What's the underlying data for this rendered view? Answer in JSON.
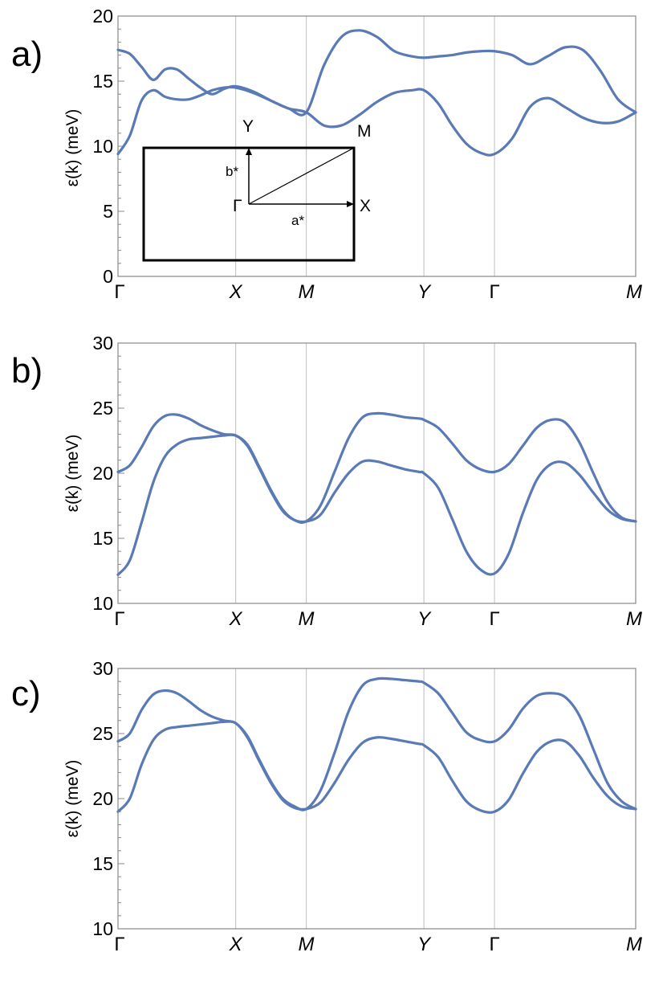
{
  "chart_data": [
    {
      "type": "line",
      "panel_tag": "a)",
      "ylabel": "ε(k) (meV)",
      "ylim": [
        0,
        20
      ],
      "yticks": [
        "0",
        "5",
        "10",
        "15",
        "20"
      ],
      "x_labels": [
        "Γ",
        "X",
        "M",
        "Y",
        "Γ",
        "M"
      ],
      "x_label_positions": [
        0,
        1,
        1.6,
        2.6,
        3.2,
        4.4
      ],
      "grid": "vertical at high-symmetry points",
      "series": [
        {
          "x": [
            0,
            0.1,
            0.2,
            0.3,
            0.4,
            0.5,
            0.6,
            0.7,
            0.8,
            0.9,
            1.0,
            1.15,
            1.3,
            1.45,
            1.6,
            1.75,
            1.9,
            2.05,
            2.2,
            2.35,
            2.5,
            2.6,
            2.72,
            2.84,
            2.96,
            3.08,
            3.2,
            3.35,
            3.5,
            3.65,
            3.8,
            3.95,
            4.1,
            4.25,
            4.4
          ],
          "y": [
            17.4,
            17.1,
            16.1,
            15.1,
            15.9,
            15.9,
            15.2,
            14.5,
            14.0,
            14.4,
            14.6,
            14.2,
            13.5,
            12.9,
            12.6,
            16.2,
            18.4,
            18.9,
            18.4,
            17.3,
            16.9,
            16.8,
            16.9,
            17.0,
            17.2,
            17.3,
            17.3,
            17.0,
            16.3,
            16.9,
            17.6,
            17.4,
            15.8,
            13.6,
            12.6
          ]
        },
        {
          "x": [
            0,
            0.1,
            0.2,
            0.3,
            0.4,
            0.5,
            0.6,
            0.7,
            0.8,
            0.9,
            1.0,
            1.15,
            1.3,
            1.45,
            1.6,
            1.75,
            1.9,
            2.05,
            2.2,
            2.35,
            2.5,
            2.6,
            2.72,
            2.84,
            2.96,
            3.08,
            3.2,
            3.35,
            3.5,
            3.65,
            3.8,
            3.95,
            4.1,
            4.25,
            4.4
          ],
          "y": [
            9.4,
            10.8,
            13.5,
            14.3,
            13.8,
            13.6,
            13.6,
            13.9,
            14.3,
            14.5,
            14.5,
            14.1,
            13.5,
            12.9,
            12.6,
            11.6,
            11.6,
            12.4,
            13.4,
            14.1,
            14.3,
            14.3,
            13.3,
            11.6,
            10.2,
            9.5,
            9.4,
            10.6,
            13.0,
            13.7,
            13.0,
            12.2,
            11.8,
            11.9,
            12.6
          ]
        }
      ],
      "inset": {
        "labels": {
          "gamma": "Γ",
          "x": "X",
          "y": "Y",
          "m": "M",
          "a_star": "a*",
          "b_star": "b*"
        }
      }
    },
    {
      "type": "line",
      "panel_tag": "b)",
      "ylabel": "ε(k) (meV)",
      "ylim": [
        10,
        30
      ],
      "yticks": [
        "10",
        "15",
        "20",
        "25",
        "30"
      ],
      "x_labels": [
        "Γ",
        "X",
        "M",
        "Y",
        "Γ",
        "M"
      ],
      "x_label_positions": [
        0,
        1,
        1.6,
        2.6,
        3.2,
        4.4
      ],
      "grid": "vertical at high-symmetry points",
      "series": [
        {
          "x": [
            0,
            0.1,
            0.2,
            0.3,
            0.4,
            0.5,
            0.6,
            0.7,
            0.8,
            0.9,
            1.0,
            1.1,
            1.2,
            1.3,
            1.4,
            1.5,
            1.6,
            1.72,
            1.84,
            1.96,
            2.08,
            2.2,
            2.32,
            2.44,
            2.56,
            2.6,
            2.72,
            2.84,
            2.96,
            3.08,
            3.2,
            3.32,
            3.44,
            3.56,
            3.68,
            3.8,
            3.92,
            4.04,
            4.16,
            4.28,
            4.4
          ],
          "y": [
            20.1,
            20.6,
            22.0,
            23.6,
            24.4,
            24.5,
            24.2,
            23.7,
            23.3,
            23.0,
            22.9,
            22.2,
            20.5,
            18.7,
            17.2,
            16.4,
            16.3,
            17.5,
            20.1,
            22.7,
            24.3,
            24.6,
            24.5,
            24.3,
            24.2,
            24.1,
            23.5,
            22.3,
            21.0,
            20.3,
            20.1,
            20.7,
            22.1,
            23.5,
            24.1,
            23.9,
            22.4,
            20.0,
            17.8,
            16.6,
            16.3
          ]
        },
        {
          "x": [
            0,
            0.1,
            0.2,
            0.3,
            0.4,
            0.5,
            0.6,
            0.7,
            0.8,
            0.9,
            1.0,
            1.1,
            1.2,
            1.3,
            1.4,
            1.5,
            1.6,
            1.72,
            1.84,
            1.96,
            2.08,
            2.2,
            2.32,
            2.44,
            2.56,
            2.6,
            2.72,
            2.84,
            2.96,
            3.08,
            3.2,
            3.32,
            3.44,
            3.56,
            3.68,
            3.8,
            3.92,
            4.04,
            4.16,
            4.28,
            4.4
          ],
          "y": [
            12.2,
            13.3,
            16.2,
            19.3,
            21.3,
            22.2,
            22.6,
            22.7,
            22.8,
            22.9,
            22.9,
            22.1,
            20.4,
            18.6,
            17.1,
            16.4,
            16.3,
            16.8,
            18.5,
            20.0,
            20.9,
            20.9,
            20.6,
            20.3,
            20.1,
            20.0,
            18.9,
            16.5,
            14.0,
            12.6,
            12.3,
            13.8,
            16.9,
            19.5,
            20.7,
            20.8,
            19.9,
            18.5,
            17.2,
            16.5,
            16.3
          ]
        }
      ]
    },
    {
      "type": "line",
      "panel_tag": "c)",
      "ylabel": "ε(k) (meV)",
      "ylim": [
        10,
        30
      ],
      "yticks": [
        "10",
        "15",
        "20",
        "25",
        "30"
      ],
      "x_labels": [
        "Γ",
        "X",
        "M",
        "Y",
        "Γ",
        "M"
      ],
      "x_label_positions": [
        0,
        1,
        1.6,
        2.6,
        3.2,
        4.4
      ],
      "grid": "vertical at high-symmetry points",
      "series": [
        {
          "x": [
            0,
            0.1,
            0.2,
            0.3,
            0.4,
            0.5,
            0.6,
            0.7,
            0.8,
            0.9,
            1.0,
            1.1,
            1.2,
            1.3,
            1.4,
            1.5,
            1.6,
            1.72,
            1.84,
            1.96,
            2.08,
            2.2,
            2.32,
            2.44,
            2.56,
            2.6,
            2.72,
            2.84,
            2.96,
            3.08,
            3.2,
            3.32,
            3.44,
            3.56,
            3.68,
            3.8,
            3.92,
            4.04,
            4.16,
            4.28,
            4.4
          ],
          "y": [
            24.4,
            25.0,
            26.8,
            28.0,
            28.3,
            28.1,
            27.5,
            26.8,
            26.3,
            26.0,
            25.8,
            24.8,
            23.0,
            21.3,
            20.0,
            19.4,
            19.2,
            20.6,
            23.5,
            26.7,
            28.7,
            29.2,
            29.2,
            29.1,
            29.0,
            28.9,
            28.1,
            26.6,
            25.1,
            24.5,
            24.4,
            25.3,
            26.9,
            27.9,
            28.1,
            27.8,
            26.4,
            23.8,
            21.2,
            19.8,
            19.2
          ]
        },
        {
          "x": [
            0,
            0.1,
            0.2,
            0.3,
            0.4,
            0.5,
            0.6,
            0.7,
            0.8,
            0.9,
            1.0,
            1.1,
            1.2,
            1.3,
            1.4,
            1.5,
            1.6,
            1.72,
            1.84,
            1.96,
            2.08,
            2.2,
            2.32,
            2.44,
            2.56,
            2.6,
            2.72,
            2.84,
            2.96,
            3.08,
            3.2,
            3.32,
            3.44,
            3.56,
            3.68,
            3.8,
            3.92,
            4.04,
            4.16,
            4.28,
            4.4
          ],
          "y": [
            19.0,
            20.0,
            22.6,
            24.5,
            25.3,
            25.5,
            25.6,
            25.7,
            25.8,
            25.9,
            25.8,
            24.7,
            22.9,
            21.2,
            19.9,
            19.3,
            19.2,
            19.7,
            21.2,
            23.0,
            24.3,
            24.7,
            24.6,
            24.4,
            24.2,
            24.1,
            23.2,
            21.4,
            19.8,
            19.1,
            19.0,
            19.9,
            21.9,
            23.6,
            24.4,
            24.4,
            23.3,
            21.6,
            20.2,
            19.4,
            19.2
          ]
        }
      ]
    }
  ],
  "style": {
    "line_color": "#5a7ab5",
    "grid_color": "#c8c8c8",
    "frame_color": "#888888"
  }
}
